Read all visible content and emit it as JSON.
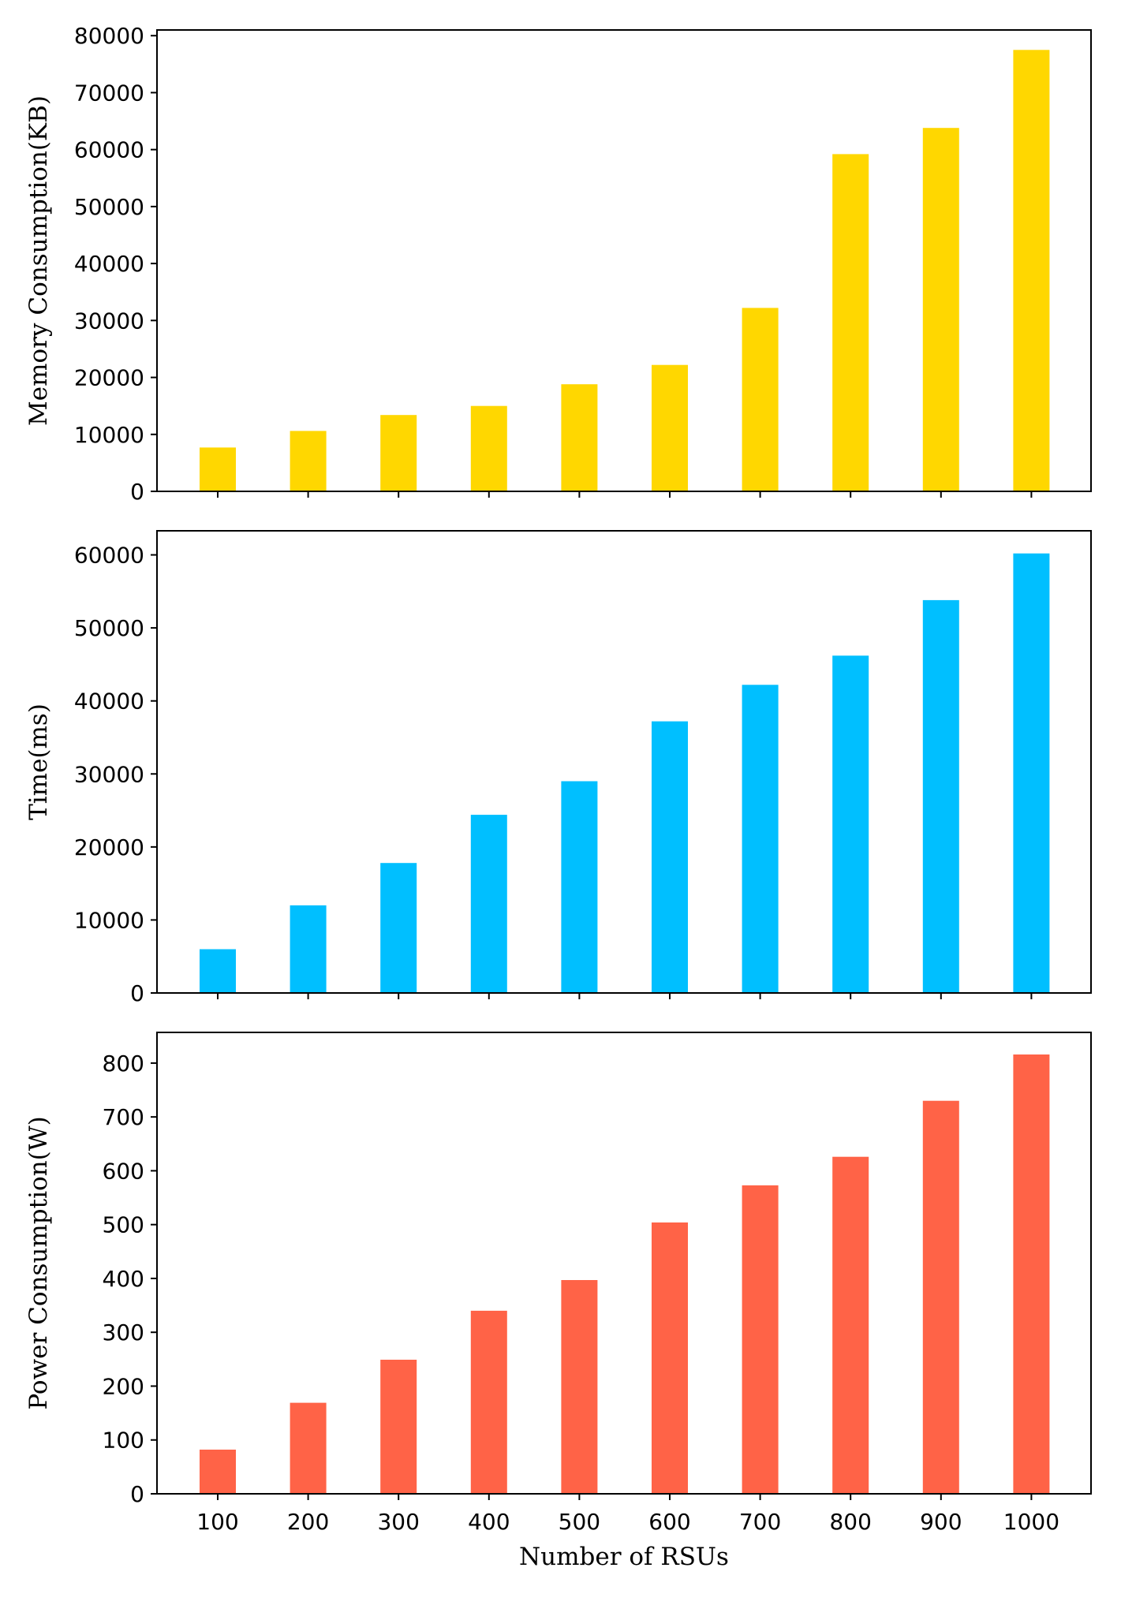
{
  "chart_data": [
    {
      "type": "bar",
      "categories": [
        "100",
        "200",
        "300",
        "400",
        "500",
        "600",
        "700",
        "800",
        "900",
        "1000"
      ],
      "values": [
        7700,
        10600,
        13400,
        15000,
        18800,
        22200,
        32200,
        59200,
        63800,
        77500
      ],
      "ylabel": "Memory Consumption(KB)",
      "xlabel": "",
      "ylim": [
        0,
        81000
      ],
      "yticks": [
        0,
        10000,
        20000,
        30000,
        40000,
        50000,
        60000,
        70000,
        80000
      ],
      "color": "#FFD700",
      "grid": false,
      "show_xtick_labels": false
    },
    {
      "type": "bar",
      "categories": [
        "100",
        "200",
        "300",
        "400",
        "500",
        "600",
        "700",
        "800",
        "900",
        "1000"
      ],
      "values": [
        6000,
        12000,
        17800,
        24400,
        29000,
        37200,
        42200,
        46200,
        53800,
        60200
      ],
      "ylabel": "Time(ms)",
      "xlabel": "",
      "ylim": [
        0,
        63300
      ],
      "yticks": [
        0,
        10000,
        20000,
        30000,
        40000,
        50000,
        60000
      ],
      "color": "#00BFFF",
      "grid": false,
      "show_xtick_labels": false
    },
    {
      "type": "bar",
      "categories": [
        "100",
        "200",
        "300",
        "400",
        "500",
        "600",
        "700",
        "800",
        "900",
        "1000"
      ],
      "values": [
        82,
        169,
        249,
        340,
        397,
        504,
        573,
        626,
        730,
        816
      ],
      "ylabel": "Power Consumption(W)",
      "xlabel": "Number of RSUs",
      "ylim": [
        0,
        857
      ],
      "yticks": [
        0,
        100,
        200,
        300,
        400,
        500,
        600,
        700,
        800
      ],
      "color": "#FF6347",
      "grid": false,
      "show_xtick_labels": true
    }
  ]
}
